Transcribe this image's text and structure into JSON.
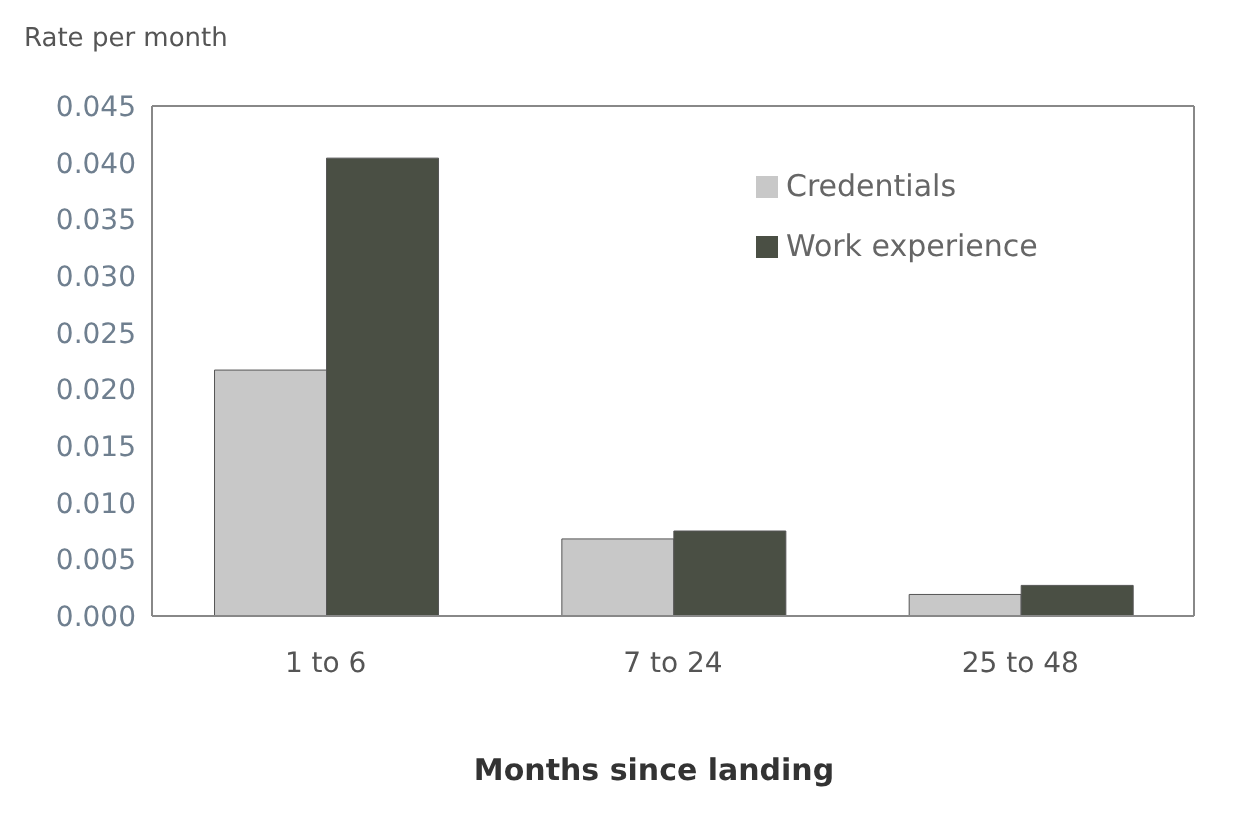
{
  "chart_data": {
    "type": "bar",
    "ylabel": "Rate per month",
    "xlabel": "Months since landing",
    "categories": [
      "1 to 6",
      "7 to 24",
      "25 to 48"
    ],
    "series": [
      {
        "name": "Credentials",
        "color": "#c8c8c8",
        "values": [
          0.0217,
          0.0068,
          0.0019
        ]
      },
      {
        "name": "Work experience",
        "color": "#4a4f44",
        "values": [
          0.0404,
          0.0075,
          0.0027
        ]
      }
    ],
    "ylim": [
      0,
      0.045
    ],
    "yticks": [
      {
        "value": 0,
        "label": "0.000"
      },
      {
        "value": 0.005,
        "label": "0.005"
      },
      {
        "value": 0.01,
        "label": "0.010"
      },
      {
        "value": 0.015,
        "label": "0.015"
      },
      {
        "value": 0.02,
        "label": "0.020"
      },
      {
        "value": 0.025,
        "label": "0.025"
      },
      {
        "value": 0.03,
        "label": "0.030"
      },
      {
        "value": 0.035,
        "label": "0.035"
      },
      {
        "value": 0.04,
        "label": "0.040"
      },
      {
        "value": 0.045,
        "label": "0.045"
      }
    ],
    "grid": false,
    "legend": "top right"
  }
}
